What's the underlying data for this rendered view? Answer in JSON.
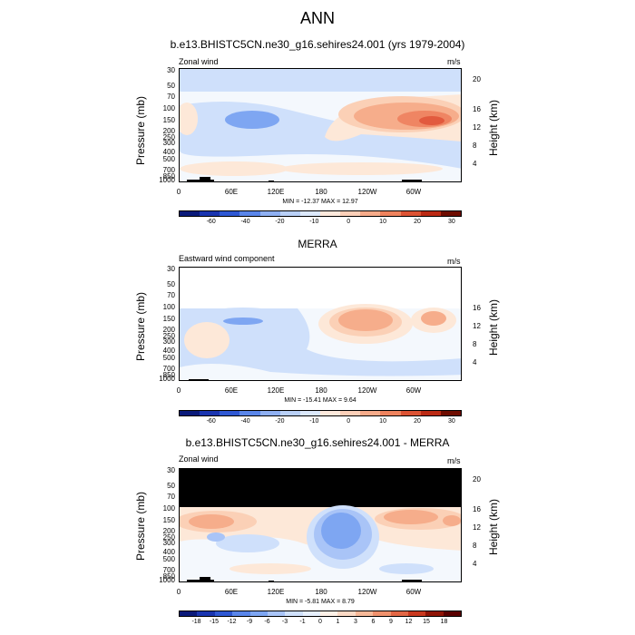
{
  "title": "ANN",
  "chart_data": [
    {
      "type": "heatmap",
      "title": "b.e13.BHISTC5CN.ne30_g16.sehires24.001 (yrs 1979-2004)",
      "left_label": "Zonal wind",
      "right_label": "m/s",
      "ylabel": "Pressure (mb)",
      "ylabel_right": "Height (km)",
      "x_ticks": [
        "0",
        "60E",
        "120E",
        "180",
        "120W",
        "60W"
      ],
      "y_ticks": [
        "30",
        "50",
        "70",
        "100",
        "150",
        "200",
        "250",
        "300",
        "400",
        "500",
        "700",
        "850",
        "1000"
      ],
      "y_ticks_right": [
        "20",
        "16",
        "12",
        "8",
        "4"
      ],
      "stats": "MIN = -12.37   MAX =  12.97",
      "min": -12.37,
      "max": 12.97,
      "colorbar_labels": [
        "-60",
        "-40",
        "-20",
        "-10",
        "0",
        "10",
        "20",
        "30"
      ]
    },
    {
      "type": "heatmap",
      "title": "MERRA",
      "left_label": "Eastward wind component",
      "right_label": "m/s",
      "ylabel": "Pressure (mb)",
      "ylabel_right": "Height (km)",
      "x_ticks": [
        "0",
        "60E",
        "120E",
        "180",
        "120W",
        "60W"
      ],
      "y_ticks": [
        "30",
        "50",
        "70",
        "100",
        "150",
        "200",
        "250",
        "300",
        "400",
        "500",
        "700",
        "850",
        "1000"
      ],
      "y_ticks_right": [
        "16",
        "12",
        "8",
        "4"
      ],
      "stats": "MIN = -15.41   MAX =   9.64",
      "min": -15.41,
      "max": 9.64,
      "colorbar_labels": [
        "-60",
        "-40",
        "-20",
        "-10",
        "0",
        "10",
        "20",
        "30"
      ]
    },
    {
      "type": "heatmap",
      "title": "b.e13.BHISTC5CN.ne30_g16.sehires24.001 - MERRA",
      "left_label": "Zonal wind",
      "right_label": "m/s",
      "ylabel": "Pressure (mb)",
      "ylabel_right": "Height (km)",
      "x_ticks": [
        "0",
        "60E",
        "120E",
        "180",
        "120W",
        "60W"
      ],
      "y_ticks": [
        "30",
        "50",
        "70",
        "100",
        "150",
        "200",
        "250",
        "300",
        "400",
        "500",
        "700",
        "850",
        "1000"
      ],
      "y_ticks_right": [
        "20",
        "16",
        "12",
        "8",
        "4"
      ],
      "stats": "MIN =  -5.81   MAX =   8.79",
      "min": -5.81,
      "max": 8.79,
      "colorbar_labels": [
        "-18",
        "-15",
        "-12",
        "-9",
        "-6",
        "-3",
        "-1",
        "0",
        "1",
        "3",
        "6",
        "9",
        "12",
        "15",
        "18"
      ]
    }
  ],
  "colors": {
    "div": [
      "#081d8c",
      "#1437b4",
      "#2a5ad6",
      "#4f7fe8",
      "#7ea6f2",
      "#a9c4f7",
      "#cfe0fb",
      "#f4f8fd",
      "#fde8d8",
      "#fbd0b6",
      "#f6ad8b",
      "#ef8563",
      "#e25a3e",
      "#c9301f",
      "#8f1406",
      "#5a0000"
    ],
    "cb1": [
      "#0a1a7a",
      "#1a35b0",
      "#2f58d3",
      "#5a86ea",
      "#8fb0f2",
      "#b9d0f7",
      "#dbe8fb",
      "#fde9dc",
      "#fbcfb8",
      "#f6ab8a",
      "#ee835e",
      "#dc5334",
      "#bb2a14",
      "#6e0c00"
    ],
    "cb3": [
      "#0a1a7a",
      "#1a35b0",
      "#2f58d3",
      "#5a86ea",
      "#7ea6f2",
      "#a9c4f7",
      "#cfe0fb",
      "#e6effd",
      "#fdf0e6",
      "#fbd9c5",
      "#f6b898",
      "#ef916d",
      "#e26745",
      "#c9391f",
      "#8f1406",
      "#5a0000"
    ]
  }
}
